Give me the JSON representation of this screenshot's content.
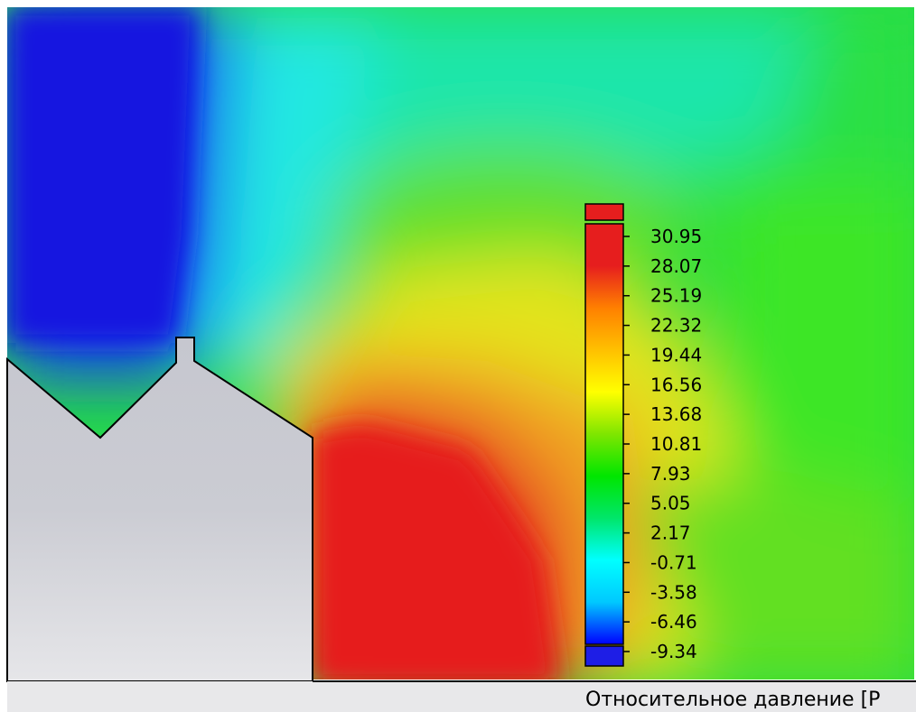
{
  "chart_data": {
    "type": "heatmap",
    "title": "",
    "quantity_label": "Относительное давление [Р",
    "colormap": [
      "#0000ff",
      "#00c8ff",
      "#00ffff",
      "#00e66a",
      "#00e600",
      "#7fe600",
      "#ffff00",
      "#ffc000",
      "#ff8000",
      "#e61e1e",
      "#e61e1e"
    ],
    "out_of_range_colors": {
      "above": "#e61e1e",
      "below": "#1e1ee6"
    },
    "legend_ticks": [
      "30.95",
      "28.07",
      "25.19",
      "22.32",
      "19.44",
      "16.56",
      "13.68",
      "10.81",
      "7.93",
      "5.05",
      "2.17",
      "-0.71",
      "-3.58",
      "-6.46",
      "-9.34"
    ],
    "legend_range": [
      -9.34,
      30.95
    ],
    "legend_placement": "right",
    "solid_color": "#d4d5da"
  }
}
